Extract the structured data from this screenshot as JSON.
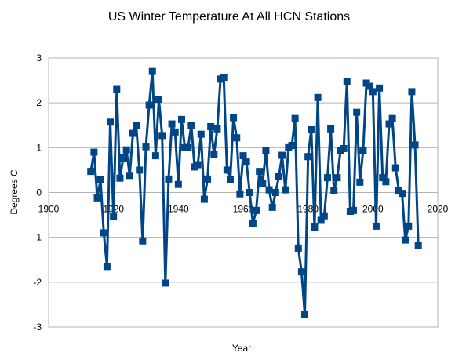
{
  "chart_data": {
    "type": "line",
    "title": "US Winter Temperature At All HCN Stations",
    "xlabel": "Year",
    "ylabel": "Degrees C",
    "xlim": [
      1900,
      2020
    ],
    "ylim": [
      -3,
      3
    ],
    "xticks": [
      1900,
      1920,
      1940,
      1960,
      1980,
      2000,
      2020
    ],
    "yticks": [
      -3,
      -2,
      -1,
      0,
      1,
      2,
      3
    ],
    "grid": "horizontal",
    "legend": "none",
    "line_color": "#004586",
    "marker": "square",
    "series": [
      {
        "x": [
          1913,
          1914,
          1915,
          1916,
          1917,
          1918,
          1919,
          1920,
          1921,
          1922,
          1923,
          1924,
          1925,
          1926,
          1927,
          1928,
          1929,
          1930,
          1931,
          1932,
          1933,
          1934,
          1935,
          1936,
          1937,
          1938,
          1939,
          1940,
          1941,
          1942,
          1943,
          1944,
          1945,
          1946,
          1947,
          1948,
          1949,
          1950,
          1951,
          1952,
          1953,
          1954,
          1955,
          1956,
          1957,
          1958,
          1959,
          1960,
          1961,
          1962,
          1963,
          1964,
          1965,
          1966,
          1967,
          1968,
          1969,
          1970,
          1971,
          1972,
          1973,
          1974,
          1975,
          1976,
          1977,
          1978,
          1979,
          1980,
          1981,
          1982,
          1983,
          1984,
          1985,
          1986,
          1987,
          1988,
          1989,
          1990,
          1991,
          1992,
          1993,
          1994,
          1995,
          1996,
          1997,
          1998,
          1999,
          2000,
          2001,
          2002,
          2003,
          2004,
          2005,
          2006,
          2007,
          2008,
          2009,
          2010,
          2011,
          2012,
          2013,
          2014
        ],
        "values": [
          0.47,
          0.9,
          -0.12,
          0.28,
          -0.9,
          -1.65,
          1.57,
          -0.53,
          2.3,
          0.32,
          0.77,
          0.95,
          0.38,
          1.32,
          1.5,
          0.5,
          -1.08,
          1.02,
          1.95,
          2.7,
          0.82,
          2.08,
          1.27,
          -2.02,
          0.3,
          1.53,
          1.35,
          0.18,
          1.63,
          1.0,
          1.0,
          1.5,
          0.57,
          0.62,
          1.3,
          -0.15,
          0.3,
          1.47,
          0.85,
          1.42,
          2.53,
          2.57,
          0.5,
          0.28,
          1.67,
          1.22,
          -0.03,
          0.82,
          0.68,
          0.0,
          -0.7,
          -0.4,
          0.47,
          0.2,
          0.93,
          0.06,
          -0.33,
          0.0,
          0.35,
          0.83,
          0.06,
          1.0,
          1.05,
          1.65,
          -1.24,
          -1.77,
          -2.72,
          0.8,
          1.4,
          -0.77,
          2.12,
          -0.62,
          -0.52,
          0.33,
          1.42,
          0.05,
          0.33,
          0.93,
          0.98,
          2.48,
          -0.42,
          -0.4,
          1.79,
          0.23,
          0.94,
          2.44,
          2.37,
          2.25,
          -0.75,
          2.33,
          0.33,
          0.24,
          1.53,
          1.65,
          0.55,
          0.05,
          -0.02,
          -1.06,
          -0.75,
          2.25,
          1.06,
          -1.18
        ]
      }
    ]
  }
}
